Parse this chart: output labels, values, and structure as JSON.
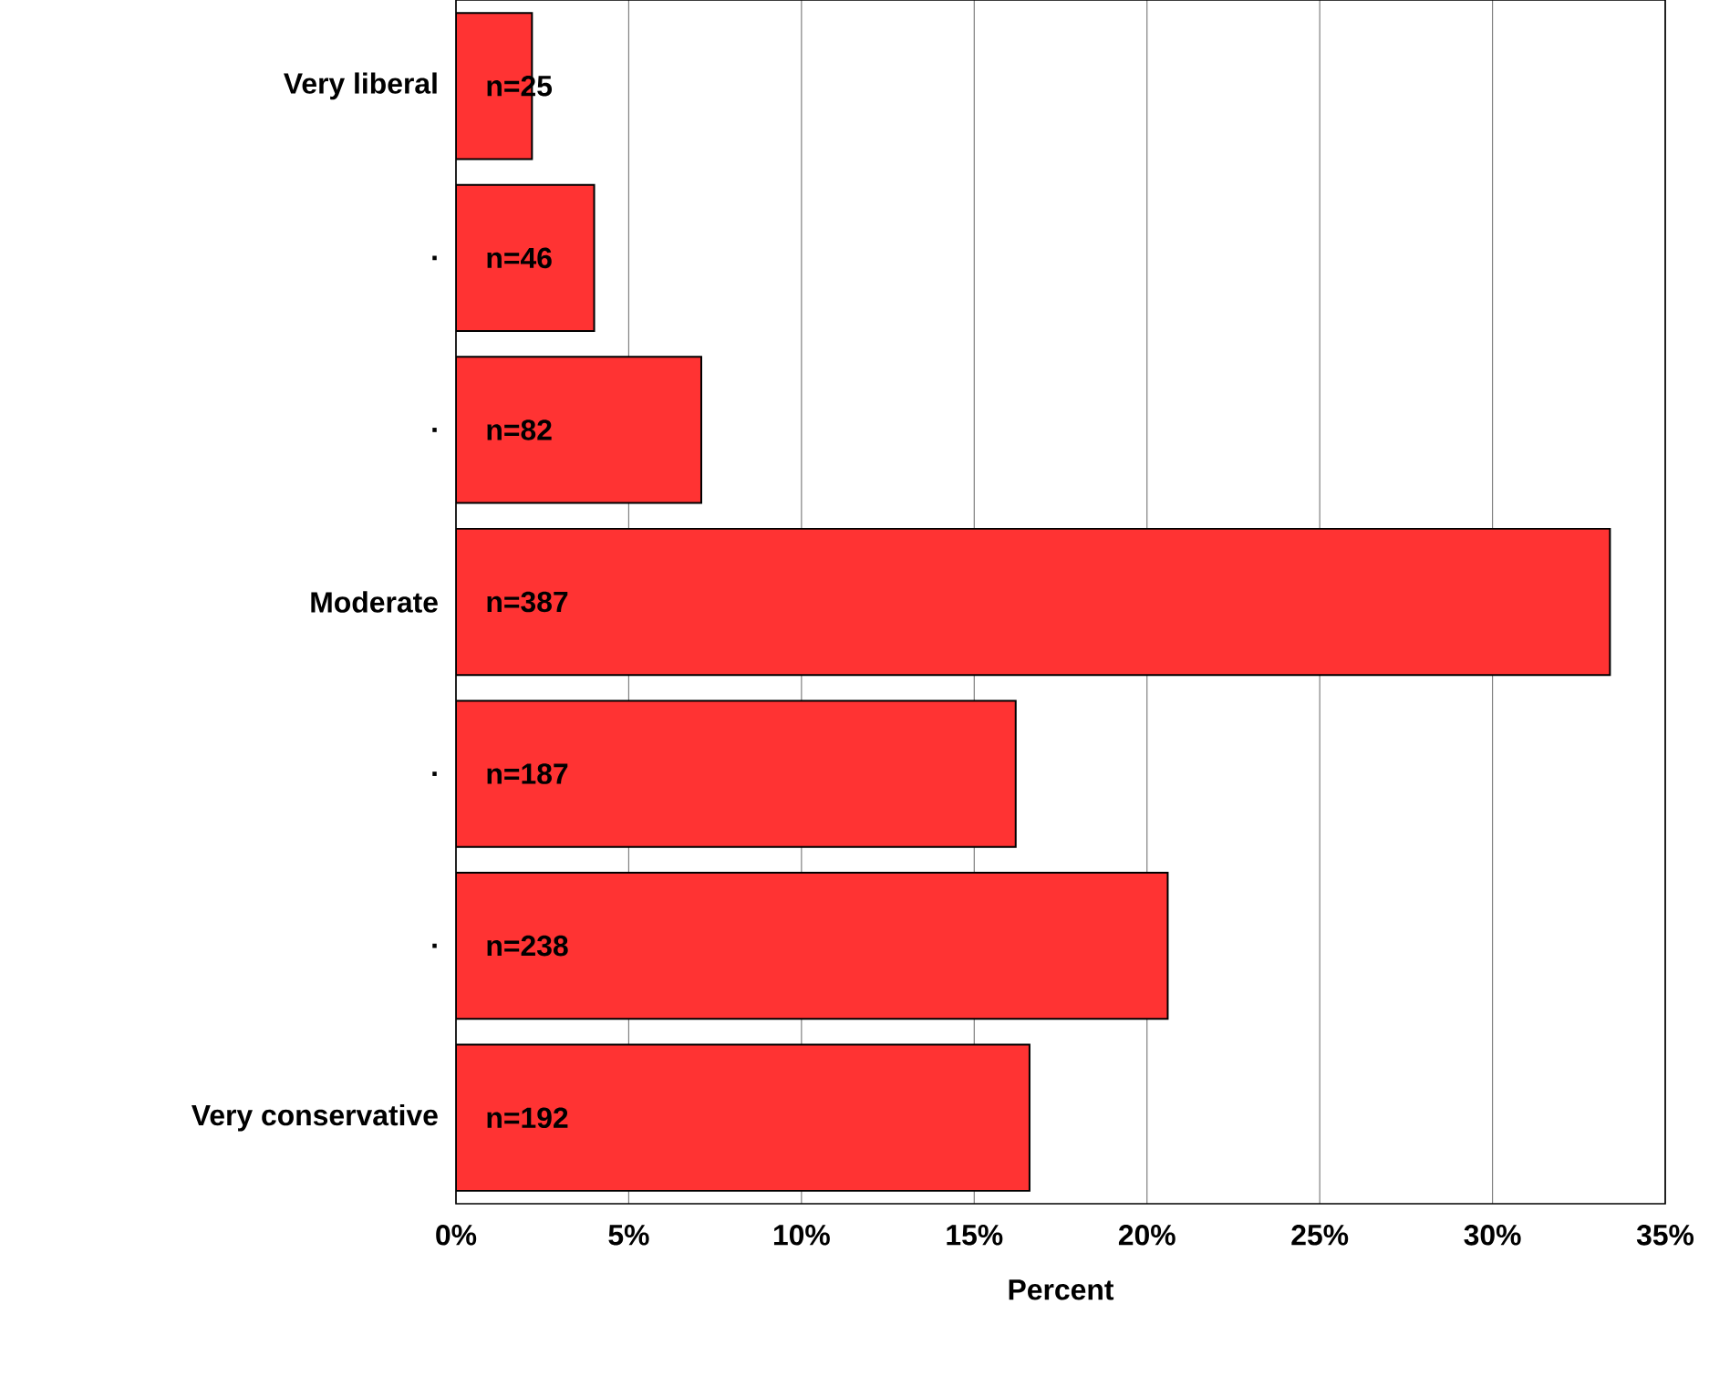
{
  "chart_data": {
    "type": "bar",
    "orientation": "horizontal",
    "xlabel": "Percent",
    "categories": [
      "Very liberal",
      ".",
      ".",
      "Moderate",
      ".",
      ".",
      "Very conservative"
    ],
    "values": [
      2.2,
      4.0,
      7.1,
      33.4,
      16.2,
      20.6,
      16.6
    ],
    "annotations": [
      "n=25",
      "n=46",
      "n=82",
      "n=387",
      "n=187",
      "n=238",
      "n=192"
    ],
    "color": "#ff3333",
    "xlim": [
      0,
      35
    ],
    "xticks": [
      {
        "value": 0,
        "label": "0%"
      },
      {
        "value": 5,
        "label": "5%"
      },
      {
        "value": 10,
        "label": "10%"
      },
      {
        "value": 15,
        "label": "15%"
      },
      {
        "value": 20,
        "label": "20%"
      },
      {
        "value": 25,
        "label": "25%"
      },
      {
        "value": 30,
        "label": "30%"
      },
      {
        "value": 35,
        "label": "35%"
      }
    ],
    "grid": "x"
  }
}
